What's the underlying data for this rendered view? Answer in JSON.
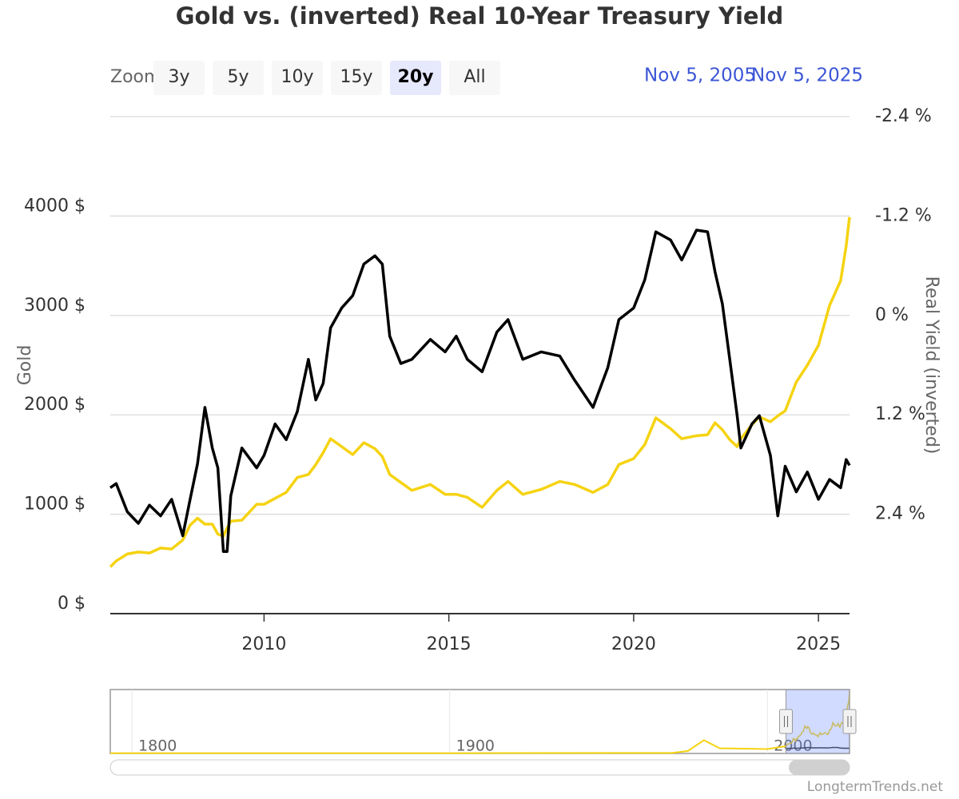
{
  "chart_data": {
    "type": "line",
    "title": "Gold vs. (inverted) Real 10-Year Treasury Yield",
    "zoom_label": "Zoom",
    "zoom_buttons": [
      "3y",
      "5y",
      "10y",
      "15y",
      "20y",
      "All"
    ],
    "zoom_selected": "20y",
    "range_from": "Nov 5, 2005",
    "range_to": "Nov 5, 2025",
    "ylabel": "Gold",
    "y2label": "Real Yield (inverted)",
    "credit": "LongtermTrends.net",
    "xlim": [
      2005.84,
      2025.84
    ],
    "xticks": [
      2010,
      2015,
      2020,
      2025
    ],
    "ylim": [
      0,
      5000
    ],
    "yticks": [
      {
        "value": 0,
        "label": "0 $"
      },
      {
        "value": 1000,
        "label": "1000 $"
      },
      {
        "value": 2000,
        "label": "2000 $"
      },
      {
        "value": 3000,
        "label": "3000 $"
      },
      {
        "value": 4000,
        "label": "4000 $"
      }
    ],
    "y2lim": [
      3.6,
      -2.4
    ],
    "y2_reversed": true,
    "y2ticks": [
      {
        "value": -2.4,
        "label": "-2.4 %"
      },
      {
        "value": -1.2,
        "label": "-1.2 %"
      },
      {
        "value": 0,
        "label": "0 %"
      },
      {
        "value": 1.2,
        "label": "1.2 %"
      },
      {
        "value": 2.4,
        "label": "2.4 %"
      }
    ],
    "grid": true,
    "x": [
      2005.84,
      2006.0,
      2006.3,
      2006.6,
      2006.9,
      2007.2,
      2007.5,
      2007.8,
      2008.0,
      2008.2,
      2008.4,
      2008.6,
      2008.75,
      2008.9,
      2009.0,
      2009.1,
      2009.4,
      2009.8,
      2010.0,
      2010.3,
      2010.6,
      2010.9,
      2011.2,
      2011.4,
      2011.6,
      2011.8,
      2012.1,
      2012.4,
      2012.7,
      2013.0,
      2013.2,
      2013.4,
      2013.7,
      2014.0,
      2014.5,
      2014.9,
      2015.2,
      2015.5,
      2015.9,
      2016.3,
      2016.6,
      2017.0,
      2017.5,
      2018.0,
      2018.4,
      2018.9,
      2019.3,
      2019.6,
      2020.0,
      2020.3,
      2020.6,
      2021.0,
      2021.3,
      2021.7,
      2022.0,
      2022.2,
      2022.4,
      2022.6,
      2022.8,
      2022.9,
      2023.2,
      2023.4,
      2023.7,
      2023.9,
      2024.1,
      2024.4,
      2024.7,
      2025.0,
      2025.3,
      2025.6,
      2025.75,
      2025.84
    ],
    "series": [
      {
        "name": "Gold",
        "color": "#f5d312",
        "axis": "y",
        "values": [
          470,
          530,
          600,
          620,
          610,
          660,
          650,
          740,
          890,
          960,
          900,
          900,
          800,
          780,
          860,
          930,
          940,
          1100,
          1100,
          1160,
          1220,
          1370,
          1400,
          1500,
          1620,
          1760,
          1680,
          1600,
          1720,
          1660,
          1580,
          1400,
          1320,
          1240,
          1300,
          1200,
          1200,
          1170,
          1070,
          1240,
          1330,
          1200,
          1250,
          1330,
          1300,
          1220,
          1300,
          1500,
          1560,
          1700,
          1970,
          1860,
          1760,
          1790,
          1800,
          1920,
          1850,
          1750,
          1680,
          1760,
          1900,
          1980,
          1930,
          1990,
          2040,
          2330,
          2500,
          2700,
          3100,
          3350,
          3700,
          3990
        ]
      },
      {
        "name": "Real Yield (inverted)",
        "color": "#000000",
        "axis": "y2",
        "values": [
          2.08,
          2.03,
          2.37,
          2.51,
          2.29,
          2.42,
          2.22,
          2.66,
          2.22,
          1.79,
          1.11,
          1.6,
          1.84,
          2.85,
          2.85,
          2.18,
          1.6,
          1.84,
          1.69,
          1.31,
          1.5,
          1.16,
          0.53,
          1.02,
          0.82,
          0.15,
          -0.09,
          -0.24,
          -0.62,
          -0.72,
          -0.62,
          0.25,
          0.58,
          0.53,
          0.29,
          0.44,
          0.25,
          0.53,
          0.68,
          0.2,
          0.05,
          0.53,
          0.44,
          0.49,
          0.78,
          1.11,
          0.63,
          0.05,
          -0.09,
          -0.43,
          -1.01,
          -0.91,
          -0.67,
          -1.03,
          -1.01,
          -0.53,
          -0.14,
          0.53,
          1.21,
          1.6,
          1.31,
          1.21,
          1.69,
          2.42,
          1.82,
          2.13,
          1.89,
          2.22,
          1.98,
          2.08,
          1.74,
          1.81
        ]
      }
    ],
    "navigator": {
      "xlim": [
        1793.2,
        2025.84
      ],
      "xticks": [
        1800,
        1900,
        2000
      ],
      "ylim": [
        0,
        4100
      ],
      "x": [
        1793.2,
        1900,
        1970,
        1975,
        1980,
        1985,
        2000,
        2005.84
      ],
      "values": [
        20,
        20,
        35,
        160,
        850,
        330,
        280,
        470
      ]
    }
  }
}
